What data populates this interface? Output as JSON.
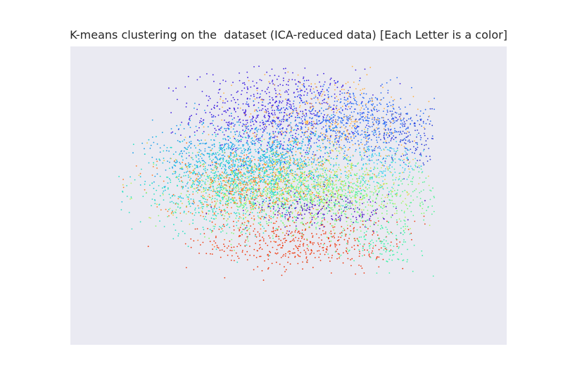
{
  "chart_data": {
    "type": "scatter",
    "title": "K-means clustering on the  dataset (ICA-reduced data) [Each Letter is a color]",
    "xlabel": "",
    "ylabel": "",
    "grid": false,
    "legend": "none",
    "axis_ticks": false,
    "xlim": [
      -5,
      5
    ],
    "ylim": [
      -4.5,
      3.5
    ],
    "background_color": "#eaeaf2",
    "colormap": "rainbow",
    "series": [
      {
        "color": "#3f1fe0",
        "center": [
          -0.3,
          1.7
        ],
        "spread": [
          0.95,
          0.6
        ],
        "count": 700
      },
      {
        "color": "#2a6df4",
        "center": [
          1.4,
          1.5
        ],
        "spread": [
          1.0,
          0.45
        ],
        "count": 650
      },
      {
        "color": "#1b9ee8",
        "center": [
          -0.9,
          0.6
        ],
        "spread": [
          1.1,
          0.5
        ],
        "count": 600
      },
      {
        "color": "#17c7e0",
        "center": [
          -0.6,
          0.2
        ],
        "spread": [
          1.2,
          0.5
        ],
        "count": 650
      },
      {
        "color": "#27e2c0",
        "center": [
          -1.4,
          -0.4
        ],
        "spread": [
          1.1,
          0.55
        ],
        "count": 600
      },
      {
        "color": "#56f398",
        "center": [
          1.2,
          -0.4
        ],
        "spread": [
          1.1,
          0.45
        ],
        "count": 500
      },
      {
        "color": "#86fb70",
        "center": [
          0.4,
          -0.7
        ],
        "spread": [
          1.3,
          0.5
        ],
        "count": 450
      },
      {
        "color": "#b9f25e",
        "center": [
          0.2,
          -0.3
        ],
        "spread": [
          1.3,
          0.4
        ],
        "count": 350
      },
      {
        "color": "#e8d24e",
        "center": [
          0.0,
          -0.1
        ],
        "spread": [
          1.3,
          0.5
        ],
        "count": 400
      },
      {
        "color": "#ffb040",
        "center": [
          0.9,
          1.5
        ],
        "spread": [
          1.0,
          0.7
        ],
        "count": 300
      },
      {
        "color": "#ff7a25",
        "center": [
          -1.0,
          -0.3
        ],
        "spread": [
          1.0,
          0.5
        ],
        "count": 400
      },
      {
        "color": "#ee3b12",
        "center": [
          0.3,
          -1.8
        ],
        "spread": [
          1.2,
          0.35
        ],
        "count": 450
      },
      {
        "color": "#4b0ec6",
        "center": [
          0.8,
          -0.9
        ],
        "spread": [
          0.9,
          0.25
        ],
        "count": 200
      },
      {
        "color": "#2f3fd8",
        "center": [
          2.7,
          1.1
        ],
        "spread": [
          0.5,
          0.4
        ],
        "count": 180
      },
      {
        "color": "#3ff5a8",
        "center": [
          2.1,
          -1.8
        ],
        "spread": [
          0.45,
          0.3
        ],
        "count": 120
      },
      {
        "color": "#3fd4f0",
        "center": [
          2.3,
          0.3
        ],
        "spread": [
          0.4,
          0.3
        ],
        "count": 120
      }
    ]
  }
}
